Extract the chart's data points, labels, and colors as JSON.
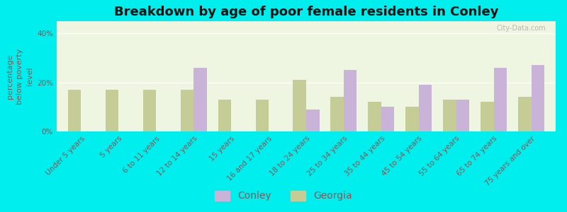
{
  "title": "Breakdown by age of poor female residents in Conley",
  "ylabel": "percentage\nbelow poverty\nlevel",
  "categories": [
    "Under 5 years",
    "5 years",
    "6 to 11 years",
    "12 to 14 years",
    "15 years",
    "16 and 17 years",
    "18 to 24 years",
    "25 to 34 years",
    "35 to 44 years",
    "45 to 54 years",
    "55 to 64 years",
    "65 to 74 years",
    "75 years and over"
  ],
  "conley": [
    0,
    0,
    0,
    26,
    0,
    0,
    9,
    25,
    10,
    19,
    13,
    26,
    27
  ],
  "georgia": [
    17,
    17,
    17,
    17,
    13,
    13,
    21,
    14,
    12,
    10,
    13,
    12,
    14
  ],
  "conley_color": "#c9b3d9",
  "georgia_color": "#c5cc96",
  "background_color": "#eef5e0",
  "outer_background": "#00eeee",
  "yticks": [
    0,
    20,
    40
  ],
  "ytick_labels": [
    "0%",
    "20%",
    "40%"
  ],
  "ylim": [
    0,
    45
  ],
  "bar_width": 0.35,
  "title_fontsize": 13,
  "axis_label_fontsize": 8,
  "tick_fontsize": 7.5,
  "legend_fontsize": 10
}
